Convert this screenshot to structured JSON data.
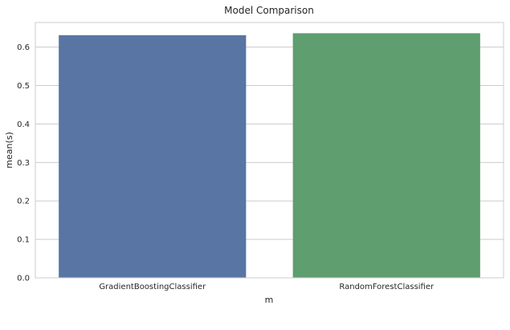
{
  "chart_data": {
    "type": "bar",
    "title": "Model Comparison",
    "xlabel": "m",
    "ylabel": "mean(s)",
    "categories": [
      "GradientBoostingClassifier",
      "RandomForestClassifier"
    ],
    "values": [
      0.631,
      0.636
    ],
    "colors": [
      "#5975a4",
      "#5f9e6e"
    ],
    "ylim": [
      0,
      0.664
    ],
    "yticks": [
      0.0,
      0.1,
      0.2,
      0.3,
      0.4,
      0.5,
      0.6
    ],
    "ytick_labels": [
      "0.0",
      "0.1",
      "0.2",
      "0.3",
      "0.4",
      "0.5",
      "0.6"
    ],
    "grid": "horizontal",
    "grid_color": "#cccccc",
    "spine_color": "#cccccc"
  }
}
